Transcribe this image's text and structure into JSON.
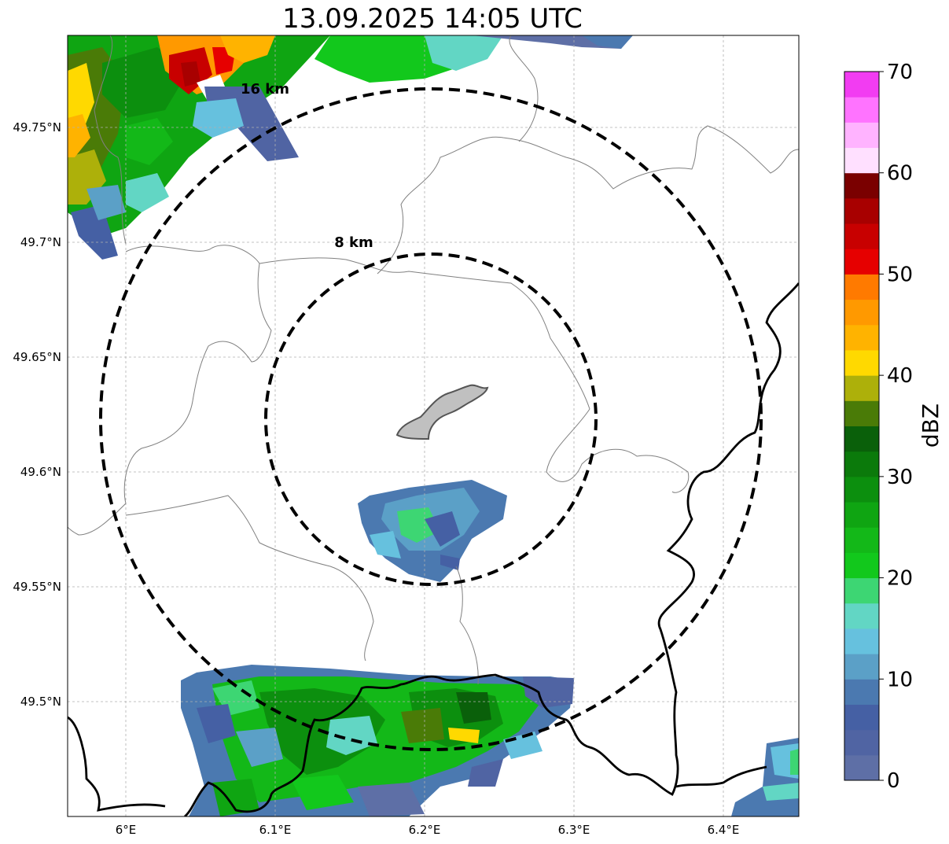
{
  "title": "13.09.2025 14:05 UTC",
  "map": {
    "lon_ticks": [
      "6°E",
      "6.1°E",
      "6.2°E",
      "6.3°E",
      "6.4°E"
    ],
    "lat_ticks": [
      "49.75°N",
      "49.7°N",
      "49.65°N",
      "49.6°N",
      "49.55°N",
      "49.5°N"
    ],
    "rings": [
      {
        "label": "8 km",
        "radius_km": 8
      },
      {
        "label": "16 km",
        "radius_km": 16
      }
    ],
    "grid": true
  },
  "colorbar": {
    "label": "dBZ",
    "ticks": [
      "0",
      "10",
      "20",
      "30",
      "40",
      "50",
      "60",
      "70"
    ],
    "colors": [
      "#5e6fa6",
      "#5064a3",
      "#4560a4",
      "#4b79b0",
      "#5ba0c7",
      "#66c1de",
      "#62d6c4",
      "#3dd673",
      "#12c81c",
      "#13b818",
      "#0fa512",
      "#0c8f0e",
      "#0b7a0b",
      "#0a600a",
      "#4a7b07",
      "#adb00a",
      "#ffd900",
      "#ffb300",
      "#ff9900",
      "#ff7a00",
      "#e60000",
      "#c80000",
      "#a80000",
      "#7a0000",
      "#ffe0ff",
      "#ffb3ff",
      "#ff73ff",
      "#f23cf2"
    ]
  }
}
